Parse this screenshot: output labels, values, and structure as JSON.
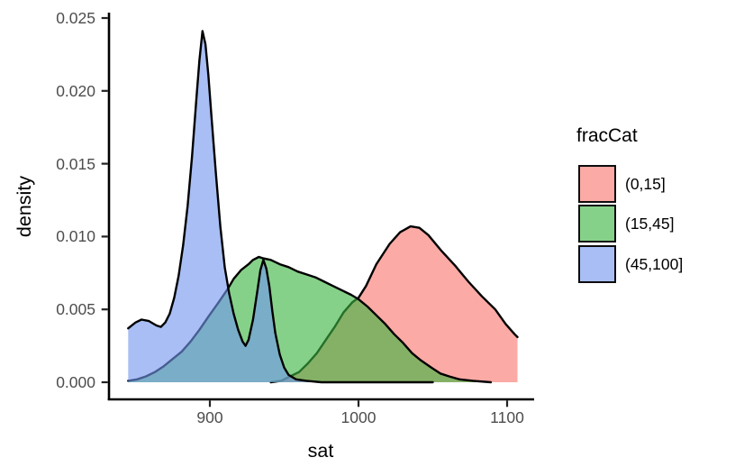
{
  "figure": {
    "background": "#ffffff"
  },
  "chart_data": {
    "type": "density-area",
    "title": "",
    "xlabel": "sat",
    "ylabel": "density",
    "grid": false,
    "panel_background": "#ffffff",
    "axis_line_color": "#000000",
    "tick_color": "#222222",
    "tick_label_color": "#4d4d4d",
    "axis_title_color": "#000000",
    "stroke_color": "#000000",
    "stroke_width": 2.4,
    "xlim": [
      832,
      1118
    ],
    "ylim": [
      0,
      0.0265
    ],
    "x_ticks": {
      "values": [
        900,
        1000,
        1100
      ],
      "labels": [
        "900",
        "1000",
        "1100"
      ]
    },
    "y_ticks": {
      "values": [
        0,
        0.005,
        0.01,
        0.015,
        0.02,
        0.025
      ],
      "labels": [
        "0.000",
        "0.005",
        "0.010",
        "0.015",
        "0.020",
        "0.025"
      ]
    },
    "xscale": {
      "v0": 900,
      "p0": 233,
      "v1": 1100,
      "p1": 563
    },
    "yscale": {
      "v0": 0,
      "p0": 424,
      "v1": 0.025,
      "p1": 20
    },
    "legend": {
      "title": "fracCat",
      "position": "right"
    },
    "series": [
      {
        "name": "fracCat-0-15",
        "label": "(0,15]",
        "fill_rgba": "rgba(248,118,110,0.62)",
        "points": [
          [
            941,
            0
          ],
          [
            948,
            0.0001
          ],
          [
            954,
            0.0004
          ],
          [
            960,
            0.0007
          ],
          [
            966,
            0.0013
          ],
          [
            972,
            0.002
          ],
          [
            978,
            0.0029
          ],
          [
            984,
            0.0038
          ],
          [
            990,
            0.0048
          ],
          [
            996,
            0.0055
          ],
          [
            1000,
            0.0058
          ],
          [
            1005,
            0.0066
          ],
          [
            1012,
            0.0081
          ],
          [
            1021,
            0.0095
          ],
          [
            1028,
            0.0103
          ],
          [
            1035,
            0.0107
          ],
          [
            1041,
            0.0106
          ],
          [
            1047,
            0.0101
          ],
          [
            1056,
            0.009
          ],
          [
            1065,
            0.008
          ],
          [
            1074,
            0.0069
          ],
          [
            1083,
            0.0059
          ],
          [
            1092,
            0.005
          ],
          [
            1099,
            0.004
          ],
          [
            1105,
            0.0033
          ],
          [
            1107,
            0.0031
          ]
        ]
      },
      {
        "name": "fracCat-15-45",
        "label": "(15,45]",
        "fill_rgba": "rgba(60,180,65,0.62)",
        "points": [
          [
            845,
            0.0001
          ],
          [
            851,
            0.0002
          ],
          [
            857,
            0.0004
          ],
          [
            863,
            0.0007
          ],
          [
            869,
            0.0011
          ],
          [
            875,
            0.0016
          ],
          [
            881,
            0.0021
          ],
          [
            887,
            0.0028
          ],
          [
            893,
            0.0036
          ],
          [
            899,
            0.0045
          ],
          [
            906,
            0.0055
          ],
          [
            912,
            0.0064
          ],
          [
            916,
            0.0071
          ],
          [
            921,
            0.0077
          ],
          [
            926,
            0.0081
          ],
          [
            929,
            0.0084
          ],
          [
            933,
            0.0086
          ],
          [
            936,
            0.0085
          ],
          [
            941,
            0.0084
          ],
          [
            947,
            0.0081
          ],
          [
            953,
            0.0079
          ],
          [
            959,
            0.0076
          ],
          [
            965,
            0.0074
          ],
          [
            971,
            0.0072
          ],
          [
            977,
            0.0069
          ],
          [
            983,
            0.0066
          ],
          [
            989,
            0.0063
          ],
          [
            995,
            0.006
          ],
          [
            1000,
            0.0057
          ],
          [
            1006,
            0.0052
          ],
          [
            1012,
            0.0046
          ],
          [
            1018,
            0.004
          ],
          [
            1024,
            0.0033
          ],
          [
            1030,
            0.0027
          ],
          [
            1036,
            0.002
          ],
          [
            1042,
            0.0015
          ],
          [
            1049,
            0.001
          ],
          [
            1055,
            0.0006
          ],
          [
            1061,
            0.0004
          ],
          [
            1068,
            0.0002
          ],
          [
            1077,
            0.0001
          ],
          [
            1089,
            0
          ]
        ]
      },
      {
        "name": "fracCat-45-100",
        "label": "(45,100]",
        "fill_rgba": "rgba(115,150,238,0.62)",
        "points": [
          [
            845,
            0.0037
          ],
          [
            850,
            0.0041
          ],
          [
            854,
            0.0043
          ],
          [
            859,
            0.0042
          ],
          [
            864,
            0.0039
          ],
          [
            867,
            0.0038
          ],
          [
            870,
            0.0041
          ],
          [
            873,
            0.0047
          ],
          [
            876,
            0.0058
          ],
          [
            879,
            0.0073
          ],
          [
            882,
            0.0094
          ],
          [
            885,
            0.0121
          ],
          [
            888,
            0.0155
          ],
          [
            891,
            0.0196
          ],
          [
            893,
            0.0221
          ],
          [
            895,
            0.0241
          ],
          [
            897,
            0.0232
          ],
          [
            899,
            0.0211
          ],
          [
            901,
            0.0183
          ],
          [
            904,
            0.0144
          ],
          [
            907,
            0.0107
          ],
          [
            910,
            0.0079
          ],
          [
            913,
            0.0061
          ],
          [
            916,
            0.0047
          ],
          [
            919,
            0.0036
          ],
          [
            922,
            0.0028
          ],
          [
            924,
            0.0025
          ],
          [
            926,
            0.0029
          ],
          [
            929,
            0.0043
          ],
          [
            932,
            0.0063
          ],
          [
            934,
            0.0077
          ],
          [
            936,
            0.0084
          ],
          [
            938,
            0.0078
          ],
          [
            940,
            0.0066
          ],
          [
            942,
            0.0049
          ],
          [
            944,
            0.0034
          ],
          [
            947,
            0.0019
          ],
          [
            950,
            0.001
          ],
          [
            953,
            0.0005
          ],
          [
            958,
            0.0002
          ],
          [
            965,
            0.0001
          ],
          [
            975,
            0
          ],
          [
            1000,
            0
          ],
          [
            1030,
            0
          ],
          [
            1050,
            0
          ]
        ]
      }
    ]
  }
}
